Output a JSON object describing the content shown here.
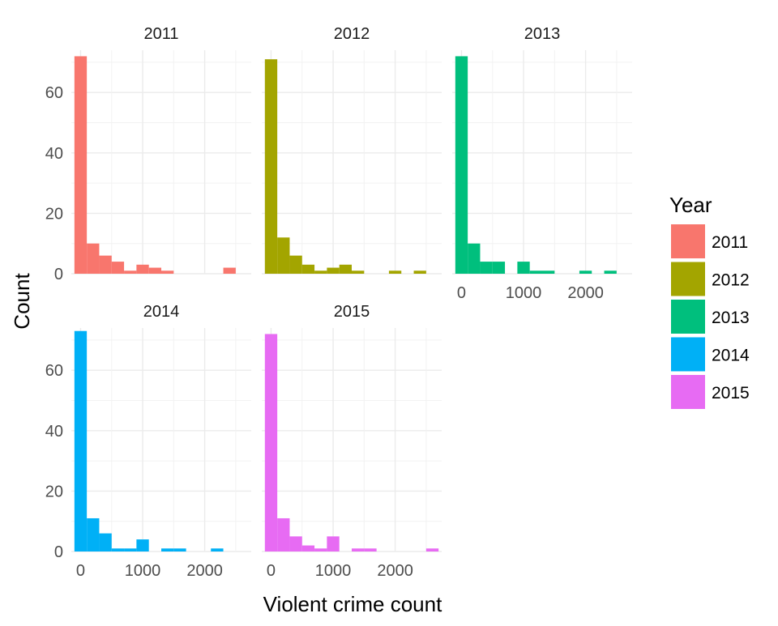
{
  "chart_data": {
    "type": "bar",
    "subtype": "faceted-histogram",
    "xlabel": "Violent crime count",
    "ylabel": "Count",
    "xlim": [
      -150,
      2750
    ],
    "ylim": [
      0,
      74
    ],
    "x_ticks": [
      0,
      1000,
      2000
    ],
    "x_tick_labels": [
      "0",
      "1000",
      "2000"
    ],
    "y_ticks": [
      0,
      20,
      40,
      60
    ],
    "y_tick_labels": [
      "0",
      "20",
      "40",
      "60"
    ],
    "bin_width": 200,
    "bin_centers": [
      0,
      200,
      400,
      600,
      800,
      1000,
      1200,
      1400,
      1600,
      1800,
      2000,
      2200,
      2400,
      2600
    ],
    "grid": true,
    "legend": {
      "title": "Year",
      "position": "right",
      "entries": [
        {
          "label": "2011",
          "color": "#F8766D"
        },
        {
          "label": "2012",
          "color": "#A3A500"
        },
        {
          "label": "2013",
          "color": "#00BF7D"
        },
        {
          "label": "2014",
          "color": "#00B0F6"
        },
        {
          "label": "2015",
          "color": "#E76BF3"
        }
      ]
    },
    "series": [
      {
        "name": "2011",
        "color": "#F8766D",
        "values": [
          72,
          10,
          6,
          4,
          1,
          3,
          2,
          1,
          0,
          0,
          0,
          0,
          2,
          0
        ]
      },
      {
        "name": "2012",
        "color": "#A3A500",
        "values": [
          71,
          12,
          6,
          3,
          1,
          2,
          3,
          1,
          0,
          0,
          1,
          0,
          1,
          0
        ]
      },
      {
        "name": "2013",
        "color": "#00BF7D",
        "values": [
          72,
          10,
          4,
          4,
          0,
          4,
          1,
          1,
          0,
          0,
          1,
          0,
          1,
          0
        ]
      },
      {
        "name": "2014",
        "color": "#00B0F6",
        "values": [
          73,
          11,
          6,
          1,
          1,
          4,
          0,
          1,
          1,
          0,
          0,
          1,
          0,
          0
        ]
      },
      {
        "name": "2015",
        "color": "#E76BF3",
        "values": [
          72,
          11,
          5,
          2,
          1,
          5,
          0,
          1,
          1,
          0,
          0,
          0,
          0,
          1
        ]
      }
    ]
  }
}
